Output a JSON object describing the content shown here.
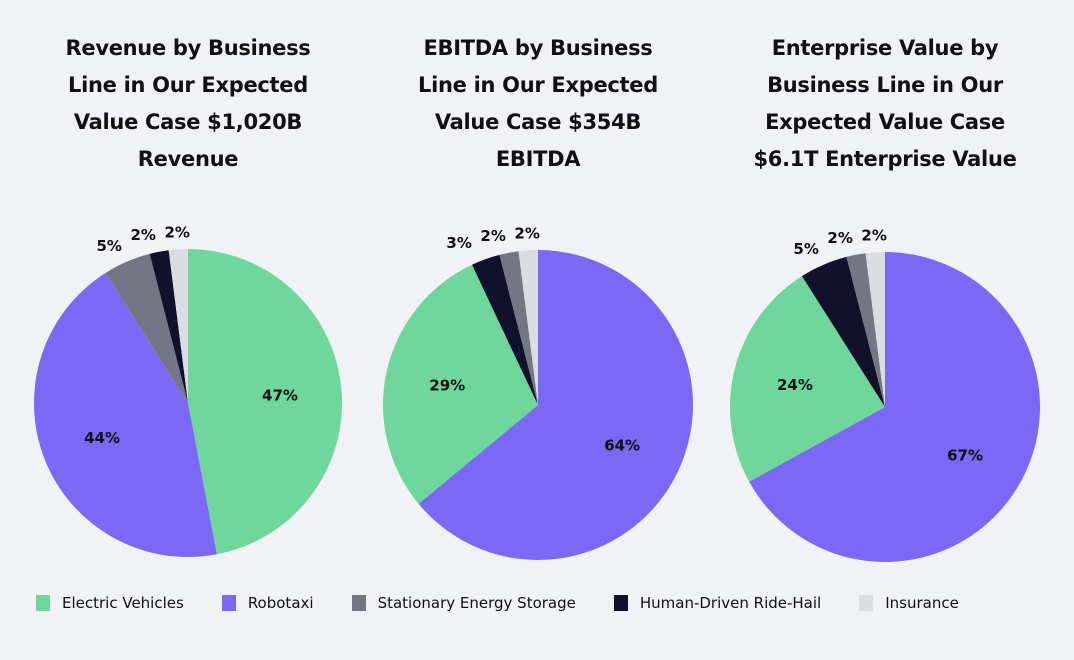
{
  "chart_data": [
    {
      "type": "pie",
      "title": "Revenue by Business Line in Our Expected Value Case $1,020B Revenue",
      "title_lines": [
        "Revenue by Business",
        "Line in Our Expected",
        "Value Case $1,020B",
        "Revenue"
      ],
      "slices": [
        {
          "category": "Electric Vehicles",
          "value": 47,
          "label": "47%"
        },
        {
          "category": "Robotaxi",
          "value": 44,
          "label": "44%"
        },
        {
          "category": "Stationary Energy Storage",
          "value": 5,
          "label": "5%"
        },
        {
          "category": "Human-Driven Ride-Hail",
          "value": 2,
          "label": "2%"
        },
        {
          "category": "Insurance",
          "value": 2,
          "label": "2%"
        }
      ]
    },
    {
      "type": "pie",
      "title": "EBITDA by Business Line in Our Expected Value Case $354B EBITDA",
      "title_lines": [
        "EBITDA by Business",
        "Line in Our Expected",
        "Value Case $354B",
        "EBITDA"
      ],
      "slices": [
        {
          "category": "Robotaxi",
          "value": 64,
          "label": "64%"
        },
        {
          "category": "Electric Vehicles",
          "value": 29,
          "label": "29%"
        },
        {
          "category": "Human-Driven Ride-Hail",
          "value": 3,
          "label": "3%"
        },
        {
          "category": "Stationary Energy Storage",
          "value": 2,
          "label": "2%"
        },
        {
          "category": "Insurance",
          "value": 2,
          "label": "2%"
        }
      ]
    },
    {
      "type": "pie",
      "title": "Enterprise Value by Business Line in Our Expected Value Case $6.1T Enterprise Value",
      "title_lines": [
        "Enterprise Value by",
        "Business Line in Our",
        "Expected Value Case",
        "$6.1T Enterprise Value"
      ],
      "slices": [
        {
          "category": "Robotaxi",
          "value": 67,
          "label": "67%"
        },
        {
          "category": "Electric Vehicles",
          "value": 24,
          "label": "24%"
        },
        {
          "category": "Human-Driven Ride-Hail",
          "value": 5,
          "label": "5%"
        },
        {
          "category": "Stationary Energy Storage",
          "value": 2,
          "label": "2%"
        },
        {
          "category": "Insurance",
          "value": 2,
          "label": "2%"
        }
      ]
    }
  ],
  "legend": {
    "placement": "bottom",
    "items": [
      {
        "label": "Electric Vehicles",
        "color": "#6fd69c"
      },
      {
        "label": "Robotaxi",
        "color": "#7b68f5"
      },
      {
        "label": "Stationary Energy Storage",
        "color": "#737685"
      },
      {
        "label": "Human-Driven Ride-Hail",
        "color": "#10112a"
      },
      {
        "label": "Insurance",
        "color": "#dcdde3"
      }
    ]
  }
}
